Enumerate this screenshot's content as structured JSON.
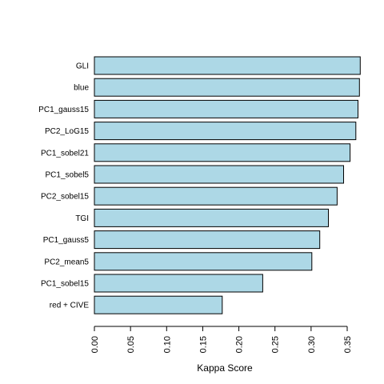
{
  "chart_data": {
    "type": "bar",
    "orientation": "horizontal",
    "categories": [
      "GLI",
      "blue",
      "PC1_gauss15",
      "PC2_LoG15",
      "PC1_sobel21",
      "PC1_sobel5",
      "PC2_sobel15",
      "TGI",
      "PC1_gauss5",
      "PC2_mean5",
      "PC1_sobel15",
      "red + CIVE"
    ],
    "values": [
      0.368,
      0.367,
      0.365,
      0.362,
      0.354,
      0.345,
      0.336,
      0.324,
      0.312,
      0.301,
      0.233,
      0.177
    ],
    "xlabel": "Kappa Score",
    "ylabel": "",
    "title": "",
    "xlim": [
      0,
      0.37
    ],
    "xticks": [
      0.0,
      0.05,
      0.1,
      0.15,
      0.2,
      0.25,
      0.3,
      0.35
    ],
    "xtick_labels": [
      "0.00",
      "0.05",
      "0.10",
      "0.15",
      "0.20",
      "0.25",
      "0.30",
      "0.35"
    ],
    "bar_color": "#add8e6",
    "grid": false,
    "legend": "none"
  }
}
